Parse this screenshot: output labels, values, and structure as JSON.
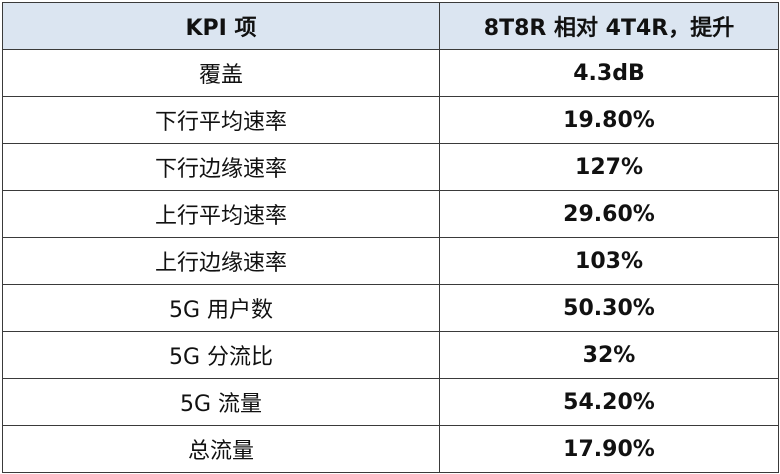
{
  "table": {
    "headers": [
      "KPI 项",
      "8T8R 相对 4T4R，提升"
    ],
    "rows": [
      {
        "kpi": "覆盖",
        "gain": "4.3dB"
      },
      {
        "kpi": "下行平均速率",
        "gain": "19.80%"
      },
      {
        "kpi": "下行边缘速率",
        "gain": "127%"
      },
      {
        "kpi": "上行平均速率",
        "gain": "29.60%"
      },
      {
        "kpi": "上行边缘速率",
        "gain": "103%"
      },
      {
        "kpi": "5G 用户数",
        "gain": "50.30%"
      },
      {
        "kpi": "5G 分流比",
        "gain": "32%"
      },
      {
        "kpi": "5G 流量",
        "gain": "54.20%"
      },
      {
        "kpi": "总流量",
        "gain": "17.90%"
      }
    ]
  },
  "colors": {
    "header_bg": "#dbe5f1",
    "border": "#3a3a3a",
    "text": "#111111"
  }
}
